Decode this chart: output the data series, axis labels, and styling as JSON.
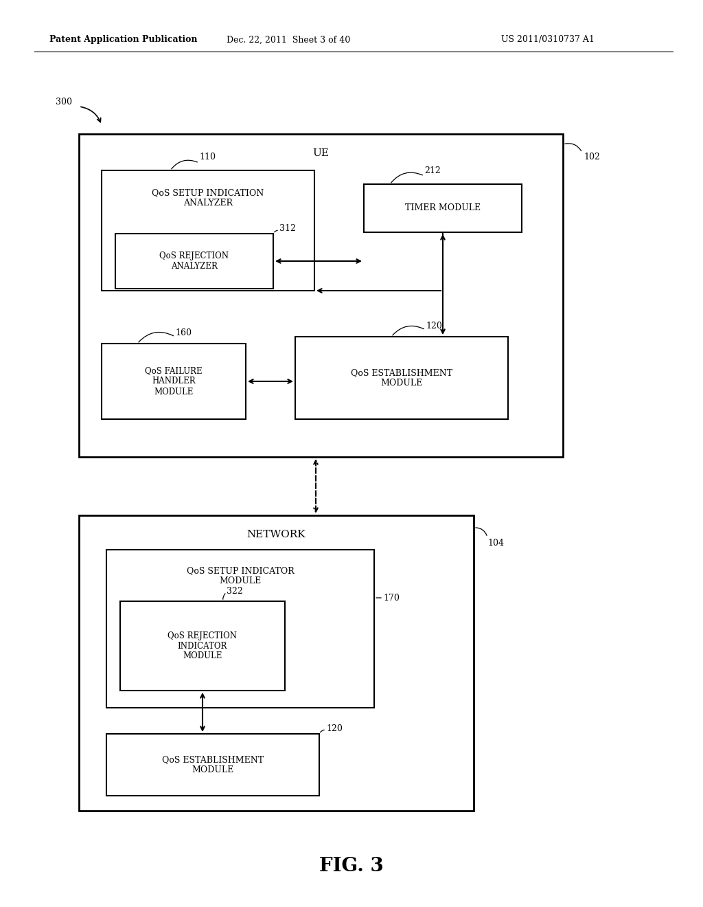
{
  "bg_color": "#ffffff",
  "header_left": "Patent Application Publication",
  "header_mid": "Dec. 22, 2011  Sheet 3 of 40",
  "header_right": "US 2011/0310737 A1",
  "fig_label": "FIG. 3",
  "ref_300": "300",
  "ref_102": "102",
  "ref_104": "104",
  "ref_110": "110",
  "ref_212": "212",
  "ref_312": "312",
  "ref_160": "160",
  "ref_120_ue": "120",
  "ref_170": "170",
  "ref_322": "322",
  "ref_120_net": "120",
  "label_ue": "UE",
  "label_network": "NETWORK",
  "label_qsia": "QoS SETUP INDICATION\nANALYZER",
  "label_qra": "QoS REJECTION\nANALYZER",
  "label_timer": "TIMER MODULE",
  "label_qfhm": "QoS FAILURE\nHANDLER\nMODULE",
  "label_qem_ue": "QoS ESTABLISHMENT\nMODULE",
  "label_qsim": "QoS SETUP INDICATOR\nMODULE",
  "label_qrim": "QoS REJECTION\nINDICATOR\nMODULE",
  "label_qem_net": "QoS ESTABLISHMENT\nMODULE"
}
